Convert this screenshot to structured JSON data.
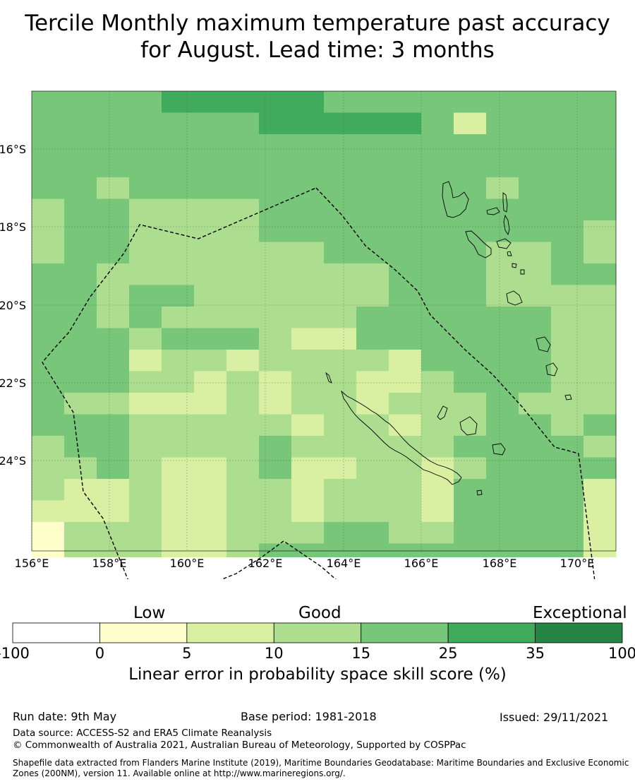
{
  "title": {
    "line1": "Tercile Monthly maximum temperature past accuracy",
    "line2": "for August. Lead time: 3 months"
  },
  "map": {
    "lon_labels": [
      "156°E",
      "158°E",
      "160°E",
      "162°E",
      "164°E",
      "166°E",
      "168°E",
      "170°E"
    ],
    "lat_labels": [
      "16°S",
      "18°S",
      "20°S",
      "22°S",
      "24°S"
    ],
    "lon_range": [
      156,
      171
    ],
    "lat_range": [
      -14.7,
      -26.5
    ],
    "cell_size_deg": 0.83,
    "grid": true,
    "boundary": "EEZ (200NM), dashed",
    "category_colors": [
      "#ffffff",
      "#ffffcc",
      "#d9f0a3",
      "#addd8e",
      "#78c679",
      "#41ab5d",
      "#238443"
    ]
  },
  "colorbar": {
    "category_labels": [
      "Low",
      "Good",
      "Exceptional"
    ],
    "tick_labels": [
      "-100",
      "0",
      "5",
      "10",
      "15",
      "25",
      "35",
      "100"
    ],
    "colors": [
      "#ffffff",
      "#ffffcc",
      "#d9f0a3",
      "#addd8e",
      "#78c679",
      "#41ab5d",
      "#238443"
    ],
    "label": "Linear error in probability space skill score (%)"
  },
  "footer": {
    "run_date": "Run date: 9th May",
    "base_period": "Base period: 1981-2018",
    "issued": "Issued: 29/11/2021",
    "data_source": "Data source: ACCESS-S2 and ERA5 Climate Reanalysis",
    "copyright": "© Commonwealth of Australia 2021, Australian Bureau of Meteorology, Supported by COSPPac",
    "shapefile_line1": "Shapefile data extracted from Flanders Marine Institute (2019), Maritime Boundaries Geodatabase: Maritime Boundaries and Exclusive Economic",
    "shapefile_line2": "Zones (200NM), version 11. Available online at http://www.marineregions.org/."
  }
}
